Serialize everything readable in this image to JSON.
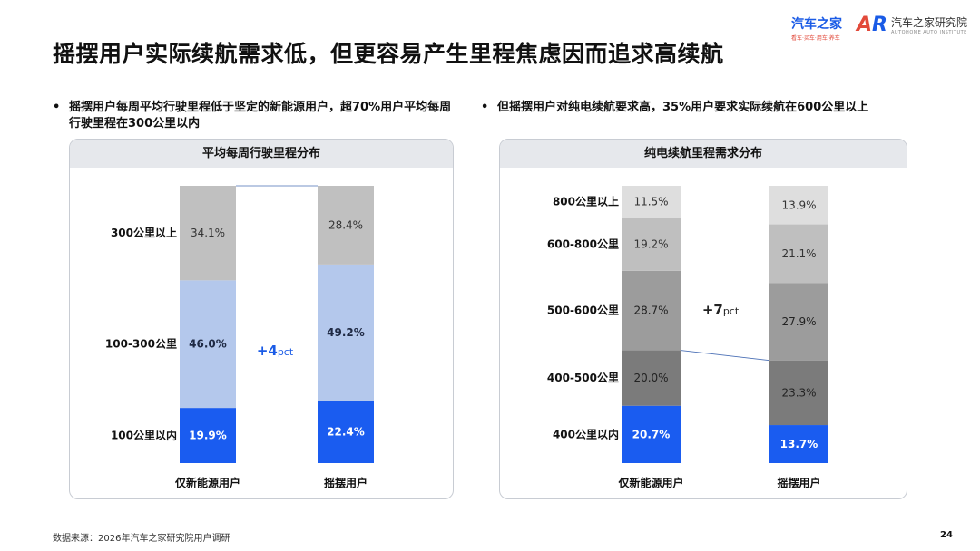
{
  "slide": {
    "title": "摇摆用户实际续航需求低，但更容易产生里程焦虑因而追求高续航",
    "logo1_main": "汽车之家",
    "logo1_sub": "看车·买车·用车·养车",
    "logo2_mark_a": "A",
    "logo2_mark_b": "R",
    "logo2_main": "汽车之家研究院",
    "logo2_sub": "AUTOHOME AUTO INSTITUTE",
    "bullet_left": "摇摆用户每周平均行驶里程低于坚定的新能源用户，超70%用户平均每周行驶里程在300公里以内",
    "bullet_right": "但摇摆用户对纯电续航要求高，35%用户要求实际续航在600公里以上",
    "bullet_symbol": "•",
    "footer": "数据来源：2026年汽车之家研究院用户调研",
    "page": "24"
  },
  "chart_data": [
    {
      "type": "bar",
      "stacked": true,
      "title": "平均每周行驶里程分布",
      "categories": [
        "仅新能源用户",
        "摇摆用户"
      ],
      "segment_labels": [
        "100公里以内",
        "100-300公里",
        "300公里以上"
      ],
      "series": [
        {
          "name": "100公里以内",
          "values": [
            19.9,
            22.4
          ],
          "color": "#1a5cf0",
          "label_color": "#ffffff"
        },
        {
          "name": "100-300公里",
          "values": [
            46.0,
            49.2
          ],
          "color": "#b4c8ec",
          "label_color": "#1f2a44"
        },
        {
          "name": "300公里以上",
          "values": [
            34.1,
            28.4
          ],
          "color": "#c0c0c0",
          "label_color": "#333333"
        }
      ],
      "annotation": {
        "value": "+4",
        "unit": "pct",
        "color": "#1a5be6"
      },
      "unit": "%",
      "ylim": [
        0,
        100
      ]
    },
    {
      "type": "bar",
      "stacked": true,
      "title": "纯电续航里程需求分布",
      "categories": [
        "仅新能源用户",
        "摇摆用户"
      ],
      "segment_labels": [
        "400公里以内",
        "400-500公里",
        "500-600公里",
        "600-800公里",
        "800公里以上"
      ],
      "series": [
        {
          "name": "400公里以内",
          "values": [
            20.7,
            13.7
          ],
          "color": "#1a5cf0",
          "label_color": "#ffffff"
        },
        {
          "name": "400-500公里",
          "values": [
            20.0,
            23.3
          ],
          "color": "#7b7b7b",
          "label_color": "#222222"
        },
        {
          "name": "500-600公里",
          "values": [
            28.7,
            27.9
          ],
          "color": "#9c9c9c",
          "label_color": "#222222"
        },
        {
          "name": "600-800公里",
          "values": [
            19.2,
            21.1
          ],
          "color": "#bfbfbf",
          "label_color": "#333333"
        },
        {
          "name": "800公里以上",
          "values": [
            11.5,
            13.9
          ],
          "color": "#dedede",
          "label_color": "#333333"
        }
      ],
      "annotation": {
        "value": "+7",
        "unit": "pct",
        "color": "#222222"
      },
      "unit": "%",
      "ylim": [
        0,
        100
      ]
    }
  ]
}
